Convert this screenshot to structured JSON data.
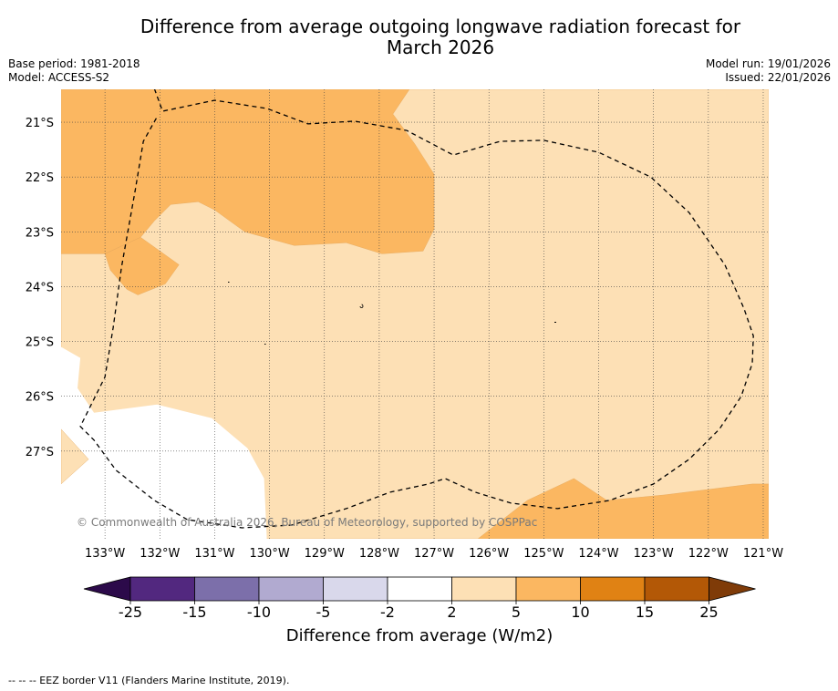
{
  "title_line1": "Difference from average outgoing longwave radiation forecast for",
  "title_line2": "March 2026",
  "meta_left": {
    "base_period": "Base period: 1981-2018",
    "model": "Model: ACCESS-S2"
  },
  "meta_right": {
    "model_run": "Model run: 19/01/2026",
    "issued": "Issued: 22/01/2026"
  },
  "copyright": "© Commonwealth of Australia 2026, Bureau of Meteorology, supported by COSPPac",
  "footer_note": "-- -- -- EEZ border V11 (Flanders Marine Institute, 2019).",
  "chart_data": {
    "type": "map",
    "title": "Difference from average outgoing longwave radiation forecast for March 2026",
    "lon_ticks": [
      -133,
      -132,
      -131,
      -130,
      -129,
      -128,
      -127,
      -126,
      -125,
      -124,
      -123,
      -122,
      -121
    ],
    "lon_labels": [
      "133°W",
      "132°W",
      "131°W",
      "130°W",
      "129°W",
      "128°W",
      "127°W",
      "126°W",
      "125°W",
      "124°W",
      "123°W",
      "122°W",
      "121°W"
    ],
    "lat_ticks": [
      -21,
      -22,
      -23,
      -24,
      -25,
      -26,
      -27
    ],
    "lat_labels": [
      "21°S",
      "22°S",
      "23°S",
      "24°S",
      "25°S",
      "26°S",
      "27°S"
    ],
    "lon_range": [
      -133.8,
      -120.9
    ],
    "lat_range": [
      -20.4,
      -28.6
    ],
    "regions": [
      {
        "category": "2 to 5",
        "color": "#fde0b5",
        "points": [
          [
            -133.8,
            -20.4
          ],
          [
            -120.9,
            -20.4
          ],
          [
            -120.9,
            -28.6
          ],
          [
            -133.8,
            -28.6
          ]
        ]
      },
      {
        "category": "-2 to 2",
        "color": "#ffffff",
        "points": [
          [
            -133.8,
            -25.1
          ],
          [
            -133.45,
            -25.3
          ],
          [
            -133.5,
            -25.85
          ],
          [
            -133.2,
            -26.3
          ],
          [
            -132.05,
            -26.15
          ],
          [
            -131.05,
            -26.4
          ],
          [
            -130.4,
            -26.95
          ],
          [
            -130.1,
            -27.5
          ],
          [
            -130.05,
            -28.6
          ],
          [
            -133.8,
            -28.6
          ]
        ]
      },
      {
        "category": "2 to 5",
        "color": "#fde0b5",
        "points": [
          [
            -133.8,
            -26.6
          ],
          [
            -133.3,
            -27.15
          ],
          [
            -133.8,
            -27.6
          ]
        ]
      },
      {
        "category": "5 to 10",
        "color": "#fbb761",
        "points": [
          [
            -133.8,
            -20.4
          ],
          [
            -127.45,
            -20.4
          ],
          [
            -127.75,
            -20.85
          ],
          [
            -127.35,
            -21.4
          ],
          [
            -127.0,
            -21.95
          ],
          [
            -127.0,
            -22.95
          ],
          [
            -127.2,
            -23.35
          ],
          [
            -127.95,
            -23.4
          ],
          [
            -128.6,
            -23.2
          ],
          [
            -129.55,
            -23.25
          ],
          [
            -130.45,
            -23.0
          ],
          [
            -131.0,
            -22.6
          ],
          [
            -131.3,
            -22.45
          ],
          [
            -131.8,
            -22.5
          ],
          [
            -132.1,
            -22.8
          ],
          [
            -132.35,
            -23.1
          ],
          [
            -133.0,
            -23.4
          ],
          [
            -133.8,
            -23.4
          ]
        ]
      },
      {
        "category": "5 to 10",
        "color": "#fbb761",
        "points": [
          [
            -133.0,
            -23.4
          ],
          [
            -132.35,
            -23.1
          ],
          [
            -131.65,
            -23.6
          ],
          [
            -131.9,
            -23.95
          ],
          [
            -132.4,
            -24.15
          ],
          [
            -132.6,
            -24.05
          ],
          [
            -132.9,
            -23.7
          ]
        ]
      },
      {
        "category": "5 to 10",
        "color": "#fbb761",
        "points": [
          [
            -125.3,
            -27.9
          ],
          [
            -124.45,
            -27.5
          ],
          [
            -123.85,
            -27.9
          ],
          [
            -122.8,
            -27.8
          ],
          [
            -121.2,
            -27.6
          ],
          [
            -120.9,
            -27.6
          ],
          [
            -120.9,
            -28.6
          ],
          [
            -126.2,
            -28.6
          ]
        ]
      }
    ],
    "eez_border": [
      [
        -132.15,
        -20.25
      ],
      [
        -131.95,
        -20.8
      ],
      [
        -131.0,
        -20.6
      ],
      [
        -130.05,
        -20.75
      ],
      [
        -129.3,
        -21.03
      ],
      [
        -128.45,
        -20.98
      ],
      [
        -127.5,
        -21.15
      ],
      [
        -126.65,
        -21.6
      ],
      [
        -125.8,
        -21.35
      ],
      [
        -125.0,
        -21.33
      ],
      [
        -124.0,
        -21.55
      ],
      [
        -123.05,
        -22.0
      ],
      [
        -122.35,
        -22.65
      ],
      [
        -121.7,
        -23.6
      ],
      [
        -121.35,
        -24.4
      ],
      [
        -121.18,
        -24.9
      ],
      [
        -121.2,
        -25.4
      ],
      [
        -121.4,
        -26.0
      ],
      [
        -121.8,
        -26.6
      ],
      [
        -122.35,
        -27.15
      ],
      [
        -123.0,
        -27.6
      ],
      [
        -123.8,
        -27.9
      ],
      [
        -124.75,
        -28.05
      ],
      [
        -125.6,
        -27.95
      ],
      [
        -126.25,
        -27.75
      ],
      [
        -126.8,
        -27.5
      ],
      [
        -127.1,
        -27.6
      ],
      [
        -127.8,
        -27.75
      ],
      [
        -128.6,
        -28.05
      ],
      [
        -129.6,
        -28.35
      ],
      [
        -130.5,
        -28.4
      ],
      [
        -131.5,
        -28.25
      ],
      [
        -132.1,
        -27.9
      ],
      [
        -132.8,
        -27.35
      ],
      [
        -133.2,
        -26.8
      ],
      [
        -133.45,
        -26.55
      ],
      [
        -133.0,
        -25.65
      ],
      [
        -132.85,
        -24.75
      ],
      [
        -132.7,
        -23.65
      ],
      [
        -132.45,
        -22.25
      ],
      [
        -132.3,
        -21.35
      ],
      [
        -132.05,
        -20.9
      ]
    ],
    "colorbar": {
      "label": "Difference from average (W/m2)",
      "ticks": [
        "-25",
        "-15",
        "-10",
        "-5",
        "-2",
        "2",
        "5",
        "10",
        "15",
        "25"
      ],
      "bins": [
        {
          "range": "< -25",
          "color": "#2c0a4a"
        },
        {
          "range": "-25 to -15",
          "color": "#52287f"
        },
        {
          "range": "-15 to -10",
          "color": "#7c6faa"
        },
        {
          "range": "-10 to -5",
          "color": "#b1aad0"
        },
        {
          "range": "-5 to -2",
          "color": "#d9d8eb"
        },
        {
          "range": "-2 to 2",
          "color": "#ffffff"
        },
        {
          "range": "2 to 5",
          "color": "#fde0b5"
        },
        {
          "range": "5 to 10",
          "color": "#fbb761"
        },
        {
          "range": "10 to 15",
          "color": "#e08214"
        },
        {
          "range": "15 to 25",
          "color": "#b35806"
        },
        {
          "range": "> 25",
          "color": "#7f3b08"
        }
      ]
    }
  }
}
